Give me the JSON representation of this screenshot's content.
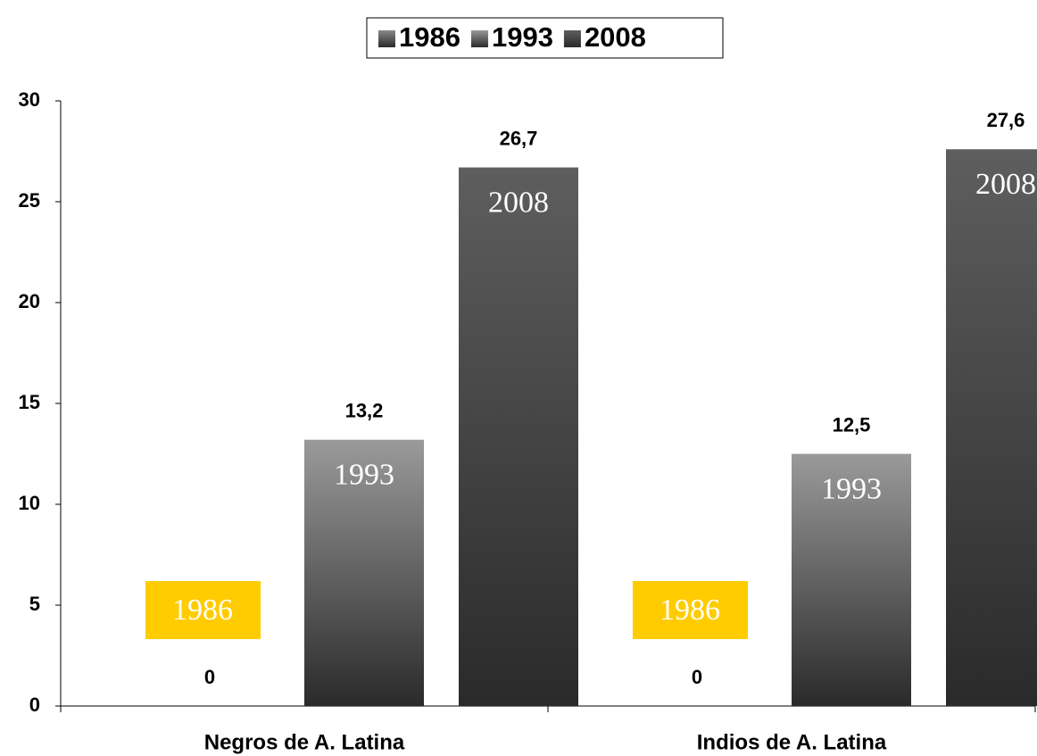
{
  "chart_data": {
    "type": "bar",
    "categories": [
      "Negros de A. Latina",
      "Indios de A. Latina"
    ],
    "series": [
      {
        "name": "1986",
        "color": "#8a8a8a",
        "values": [
          0,
          0
        ],
        "value_labels": [
          "0",
          "0"
        ]
      },
      {
        "name": "1993",
        "color": "#9a9a9a",
        "values": [
          13.2,
          12.5
        ],
        "value_labels": [
          "13,2",
          "12,5"
        ]
      },
      {
        "name": "2008",
        "color": "#5e5e5e",
        "values": [
          26.7,
          27.6
        ],
        "value_labels": [
          "26,7",
          "27,6"
        ]
      }
    ],
    "ylim": [
      0,
      30
    ],
    "yticks": [
      0,
      5,
      10,
      15,
      20,
      25,
      30
    ],
    "legend": "top",
    "grid": false
  }
}
